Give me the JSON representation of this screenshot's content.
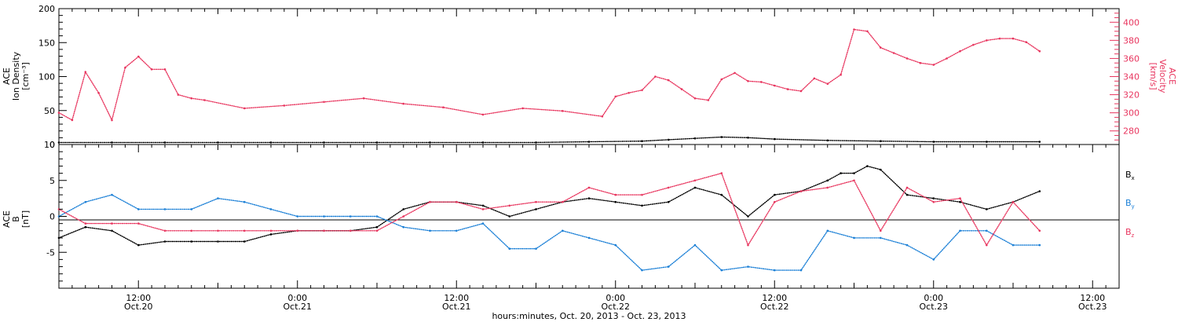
{
  "colors": {
    "axis": "#000000",
    "density": "#000000",
    "velocity": "#e8365f",
    "bx": "#000000",
    "by": "#1a7fd6",
    "bz": "#e8365f"
  },
  "footer": {
    "xlabel": "hours:minutes, Oct. 20, 2013 - Oct. 23, 2013"
  },
  "x_ticks": [
    {
      "time": "12:00",
      "date": "Oct.20",
      "hour": 12
    },
    {
      "time": "0:00",
      "date": "Oct.21",
      "hour": 24
    },
    {
      "time": "12:00",
      "date": "Oct.21",
      "hour": 36
    },
    {
      "time": "0:00",
      "date": "Oct.22",
      "hour": 48
    },
    {
      "time": "12:00",
      "date": "Oct.22",
      "hour": 60
    },
    {
      "time": "0:00",
      "date": "Oct.23",
      "hour": 72
    },
    {
      "time": "12:00",
      "date": "Oct.23",
      "hour": 84
    }
  ],
  "chart_data": [
    {
      "type": "scatter",
      "panel": "top",
      "ylabel_left": [
        "ACE",
        "Ion Density",
        "[cm⁻³]"
      ],
      "ylabel_right": [
        "ACE",
        "Velocity",
        "[km/s]"
      ],
      "xlim": [
        6,
        86
      ],
      "ylim_left": [
        0,
        200
      ],
      "ylim_right": [
        265,
        415
      ],
      "yticks_left": [
        0,
        50,
        100,
        150,
        200
      ],
      "yticks_right": [
        280,
        300,
        320,
        340,
        360,
        380,
        400
      ],
      "series": [
        {
          "axis": "left",
          "x": [
            6,
            10,
            14,
            18,
            22,
            26,
            30,
            34,
            38,
            42,
            46,
            50,
            52,
            54,
            56,
            58,
            60,
            64,
            68,
            72,
            76,
            80
          ],
          "y": [
            3,
            3,
            3,
            3,
            3,
            3,
            3,
            3,
            3,
            3,
            4,
            5,
            7,
            9,
            11,
            10,
            8,
            6,
            5,
            4,
            4,
            4
          ]
        },
        {
          "axis": "right",
          "x": [
            6,
            7,
            8,
            9,
            10,
            11,
            12,
            13,
            14,
            15,
            16,
            17,
            20,
            23,
            26,
            29,
            32,
            35,
            38,
            41,
            44,
            47,
            48,
            49,
            50,
            51,
            52,
            53,
            54,
            55,
            56,
            57,
            58,
            59,
            60,
            61,
            62,
            63,
            64,
            65,
            66,
            67,
            68,
            69,
            70,
            71,
            72,
            73,
            74,
            75,
            76,
            77,
            78,
            79,
            80
          ],
          "y": [
            300,
            292,
            345,
            322,
            292,
            350,
            362,
            348,
            348,
            320,
            316,
            314,
            305,
            308,
            312,
            316,
            310,
            306,
            298,
            305,
            302,
            296,
            318,
            322,
            325,
            340,
            336,
            326,
            316,
            314,
            337,
            344,
            335,
            334,
            330,
            326,
            324,
            338,
            332,
            342,
            392,
            390,
            372,
            366,
            360,
            355,
            353,
            360,
            368,
            375,
            380,
            382,
            382,
            378,
            368
          ]
        }
      ]
    },
    {
      "type": "scatter",
      "panel": "bottom",
      "ylabel": [
        "ACE",
        "B",
        "[nT]"
      ],
      "xlim": [
        6,
        86
      ],
      "ylim": [
        -10,
        10
      ],
      "yticks": [
        -5,
        0,
        5,
        10
      ],
      "series": [
        {
          "name": "Bx",
          "x": [
            6,
            8,
            10,
            12,
            14,
            16,
            18,
            20,
            22,
            24,
            26,
            28,
            30,
            32,
            34,
            36,
            38,
            40,
            42,
            44,
            46,
            48,
            50,
            52,
            54,
            56,
            58,
            60,
            62,
            64,
            65,
            66,
            67,
            68,
            70,
            72,
            74,
            76,
            78,
            80
          ],
          "y": [
            -3,
            -1.5,
            -2,
            -4,
            -3.5,
            -3.5,
            -3.5,
            -3.5,
            -2.5,
            -2,
            -2,
            -2,
            -1.5,
            1,
            2,
            2,
            1.5,
            0,
            1,
            2,
            2.5,
            2,
            1.5,
            2,
            4,
            3,
            0,
            3,
            3.5,
            5,
            6,
            6,
            7,
            6.5,
            3,
            2.5,
            2,
            1,
            2,
            3.5
          ]
        },
        {
          "name": "By",
          "x": [
            6,
            8,
            10,
            12,
            14,
            16,
            18,
            20,
            22,
            24,
            26,
            28,
            30,
            32,
            34,
            36,
            38,
            40,
            42,
            44,
            46,
            48,
            50,
            52,
            54,
            56,
            58,
            60,
            62,
            64,
            66,
            68,
            70,
            72,
            74,
            76,
            78,
            80
          ],
          "y": [
            0,
            2,
            3,
            1,
            1,
            1,
            2.5,
            2,
            1,
            0,
            0,
            0,
            0,
            -1.5,
            -2,
            -2,
            -1,
            -4.5,
            -4.5,
            -2,
            -3,
            -4,
            -7.5,
            -7,
            -4,
            -7.5,
            -7,
            -7.5,
            -7.5,
            -2,
            -3,
            -3,
            -4,
            -6,
            -2,
            -2,
            -4,
            -4
          ]
        },
        {
          "name": "Bz",
          "x": [
            6,
            8,
            10,
            12,
            14,
            16,
            18,
            20,
            22,
            24,
            26,
            28,
            30,
            32,
            34,
            36,
            38,
            40,
            42,
            44,
            46,
            48,
            50,
            52,
            54,
            56,
            58,
            60,
            62,
            64,
            66,
            68,
            70,
            72,
            74,
            76,
            78,
            80
          ],
          "y": [
            1,
            -1,
            -1,
            -1,
            -2,
            -2,
            -2,
            -2,
            -2,
            -2,
            -2,
            -2,
            -2,
            0,
            2,
            2,
            1,
            1.5,
            2,
            2,
            4,
            3,
            3,
            4,
            5,
            6,
            -4,
            2,
            3.5,
            4,
            5,
            -2,
            4,
            2,
            2.5,
            -4,
            2,
            -2
          ]
        }
      ],
      "legend": [
        {
          "name": "B",
          "sub": "x"
        },
        {
          "name": "B",
          "sub": "y"
        },
        {
          "name": "B",
          "sub": "z"
        }
      ]
    }
  ]
}
